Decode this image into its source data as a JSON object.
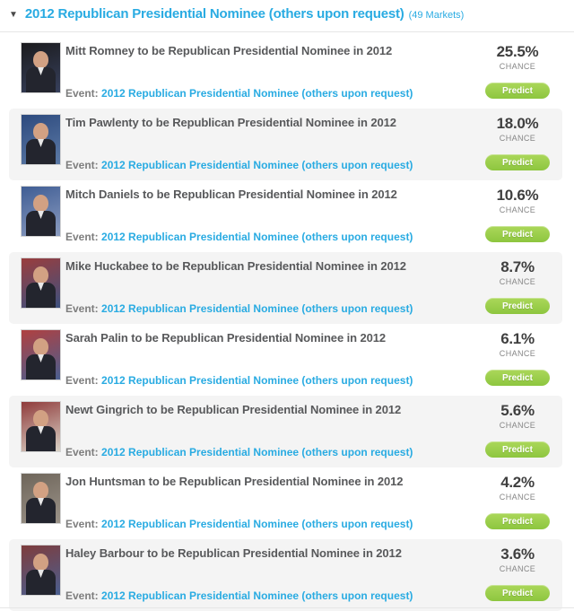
{
  "header": {
    "collapse_icon": "▼",
    "title": "2012 Republican Presidential Nominee (others upon request)",
    "markets_count": "(49 Markets)"
  },
  "colors": {
    "accent_blue": "#29abe2",
    "predict_green": "#8dc63f",
    "row_alt_gray": "#f4f4f4",
    "title_gray": "#58595b"
  },
  "row_labels": {
    "event_label": "Event:",
    "chance_label": "CHANCE",
    "predict_label": "Predict"
  },
  "markets": [
    {
      "title": "Mitt Romney to be Republican Presidential Nominee in 2012",
      "event_link": "2012 Republican Presidential Nominee (others upon request)",
      "chance": "25.5%",
      "photo": {
        "name": "mitt-romney-photo",
        "bg": [
          "#1b1b1d",
          "#37405c"
        ]
      }
    },
    {
      "title": "Tim Pawlenty to be Republican Presidential Nominee in 2012",
      "event_link": "2012 Republican Presidential Nominee (others upon request)",
      "chance": "18.0%",
      "photo": {
        "name": "tim-pawlenty-photo",
        "bg": [
          "#2d4a7e",
          "#5c7aa6"
        ]
      }
    },
    {
      "title": "Mitch Daniels to be Republican Presidential Nominee in 2012",
      "event_link": "2012 Republican Presidential Nominee (others upon request)",
      "chance": "10.6%",
      "photo": {
        "name": "mitch-daniels-photo",
        "bg": [
          "#3f5d94",
          "#8b9cc0"
        ]
      }
    },
    {
      "title": "Mike Huckabee to be Republican Presidential Nominee in 2012",
      "event_link": "2012 Republican Presidential Nominee (others upon request)",
      "chance": "8.7%",
      "photo": {
        "name": "mike-huckabee-photo",
        "bg": [
          "#9a3d3d",
          "#3d517f"
        ]
      }
    },
    {
      "title": "Sarah Palin to be Republican Presidential Nominee in 2012",
      "event_link": "2012 Republican Presidential Nominee (others upon request)",
      "chance": "6.1%",
      "photo": {
        "name": "sarah-palin-photo",
        "bg": [
          "#b04040",
          "#4a5f90"
        ]
      }
    },
    {
      "title": "Newt Gingrich to be Republican Presidential Nominee in 2012",
      "event_link": "2012 Republican Presidential Nominee (others upon request)",
      "chance": "5.6%",
      "photo": {
        "name": "newt-gingrich-photo",
        "bg": [
          "#8f3b3b",
          "#d9d3c7"
        ]
      }
    },
    {
      "title": "Jon Huntsman to be Republican Presidential Nominee in 2012",
      "event_link": "2012 Republican Presidential Nominee (others upon request)",
      "chance": "4.2%",
      "photo": {
        "name": "jon-huntsman-photo",
        "bg": [
          "#6e655a",
          "#9b9389"
        ]
      }
    },
    {
      "title": "Haley Barbour to be Republican Presidential Nominee in 2012",
      "event_link": "2012 Republican Presidential Nominee (others upon request)",
      "chance": "3.6%",
      "photo": {
        "name": "haley-barbour-photo",
        "bg": [
          "#7e3c3c",
          "#4a5f90"
        ]
      }
    }
  ]
}
